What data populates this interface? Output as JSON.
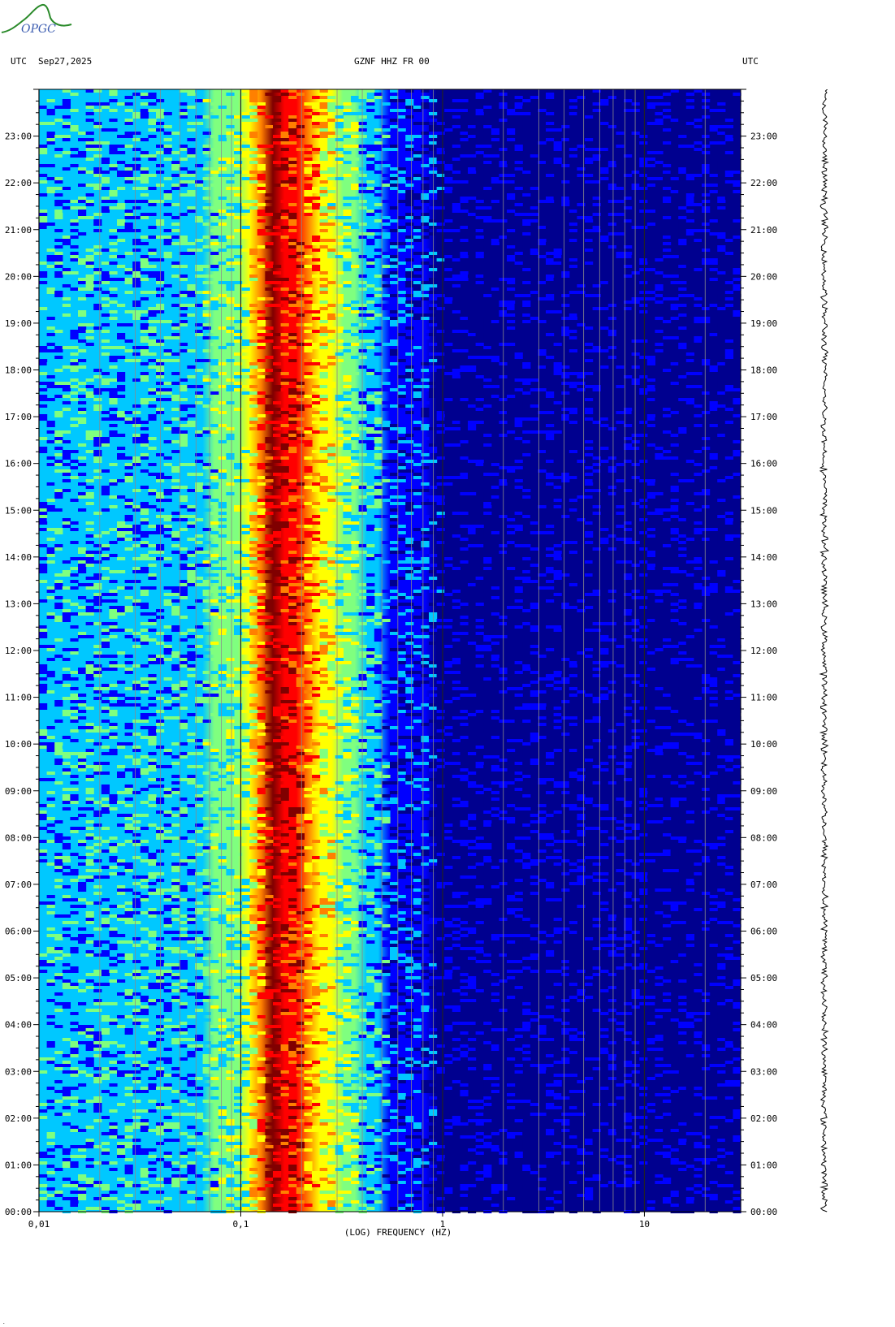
{
  "header": {
    "left_label": "UTC",
    "date": "Sep27,2025",
    "station": "GZNF HHZ FR 00",
    "right_label": "UTC"
  },
  "logo": {
    "text": "OPGC",
    "color": "#2a8a2a",
    "text_color": "#3a5bb0"
  },
  "chart_data": {
    "type": "heatmap",
    "title": "GZNF HHZ FR 00",
    "xlabel": "(LOG) FREQUENCY (HZ)",
    "ylabel": "",
    "x_scale": "log",
    "xlim": [
      0.01,
      30
    ],
    "x_ticks": [
      {
        "value": 0.01,
        "label": "0,01"
      },
      {
        "value": 0.1,
        "label": "0,1"
      },
      {
        "value": 1,
        "label": "1"
      },
      {
        "value": 10,
        "label": "10"
      }
    ],
    "ylim_hours": [
      0,
      24
    ],
    "y_ticks": [
      "00:00",
      "01:00",
      "02:00",
      "03:00",
      "04:00",
      "05:00",
      "06:00",
      "07:00",
      "08:00",
      "09:00",
      "10:00",
      "11:00",
      "12:00",
      "13:00",
      "14:00",
      "15:00",
      "16:00",
      "17:00",
      "18:00",
      "19:00",
      "20:00",
      "21:00",
      "22:00",
      "23:00"
    ],
    "colormap": [
      "#00008f",
      "#0000ff",
      "#00c8ff",
      "#7fff7f",
      "#ffff00",
      "#ff8000",
      "#ff0000",
      "#800000"
    ],
    "spectral_profile": [
      {
        "freq": 0.01,
        "level": 1.6
      },
      {
        "freq": 0.025,
        "level": 1.9
      },
      {
        "freq": 0.05,
        "level": 2.2
      },
      {
        "freq": 0.1,
        "level": 2.8
      },
      {
        "freq": 0.12,
        "level": 4.3
      },
      {
        "freq": 0.14,
        "level": 6.8
      },
      {
        "freq": 0.19,
        "level": 6.0
      },
      {
        "freq": 0.23,
        "level": 4.8
      },
      {
        "freq": 0.28,
        "level": 3.6
      },
      {
        "freq": 0.35,
        "level": 2.8
      },
      {
        "freq": 0.45,
        "level": 2.0
      },
      {
        "freq": 0.6,
        "level": 1.1
      },
      {
        "freq": 1.0,
        "level": 0.4
      },
      {
        "freq": 30,
        "level": 0.2
      }
    ],
    "grid": true
  }
}
